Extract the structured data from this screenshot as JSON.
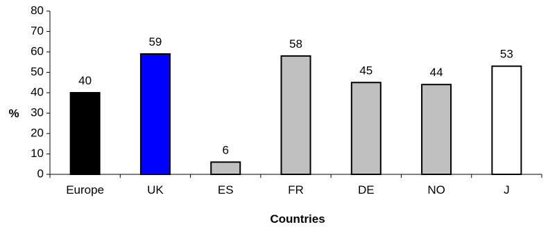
{
  "chart_data": {
    "type": "bar",
    "categories": [
      "Europe",
      "UK",
      "ES",
      "FR",
      "DE",
      "NO",
      "J"
    ],
    "values": [
      40,
      59,
      6,
      58,
      45,
      44,
      53
    ],
    "bar_colors": [
      "#000000",
      "#0000ff",
      "#c0c0c0",
      "#c0c0c0",
      "#c0c0c0",
      "#c0c0c0",
      "#ffffff"
    ],
    "xlabel": "Countries",
    "ylabel": "%",
    "ylim": [
      0,
      80
    ],
    "yticks": [
      0,
      10,
      20,
      30,
      40,
      50,
      60,
      70,
      80
    ],
    "grid": false,
    "data_labels": true
  }
}
